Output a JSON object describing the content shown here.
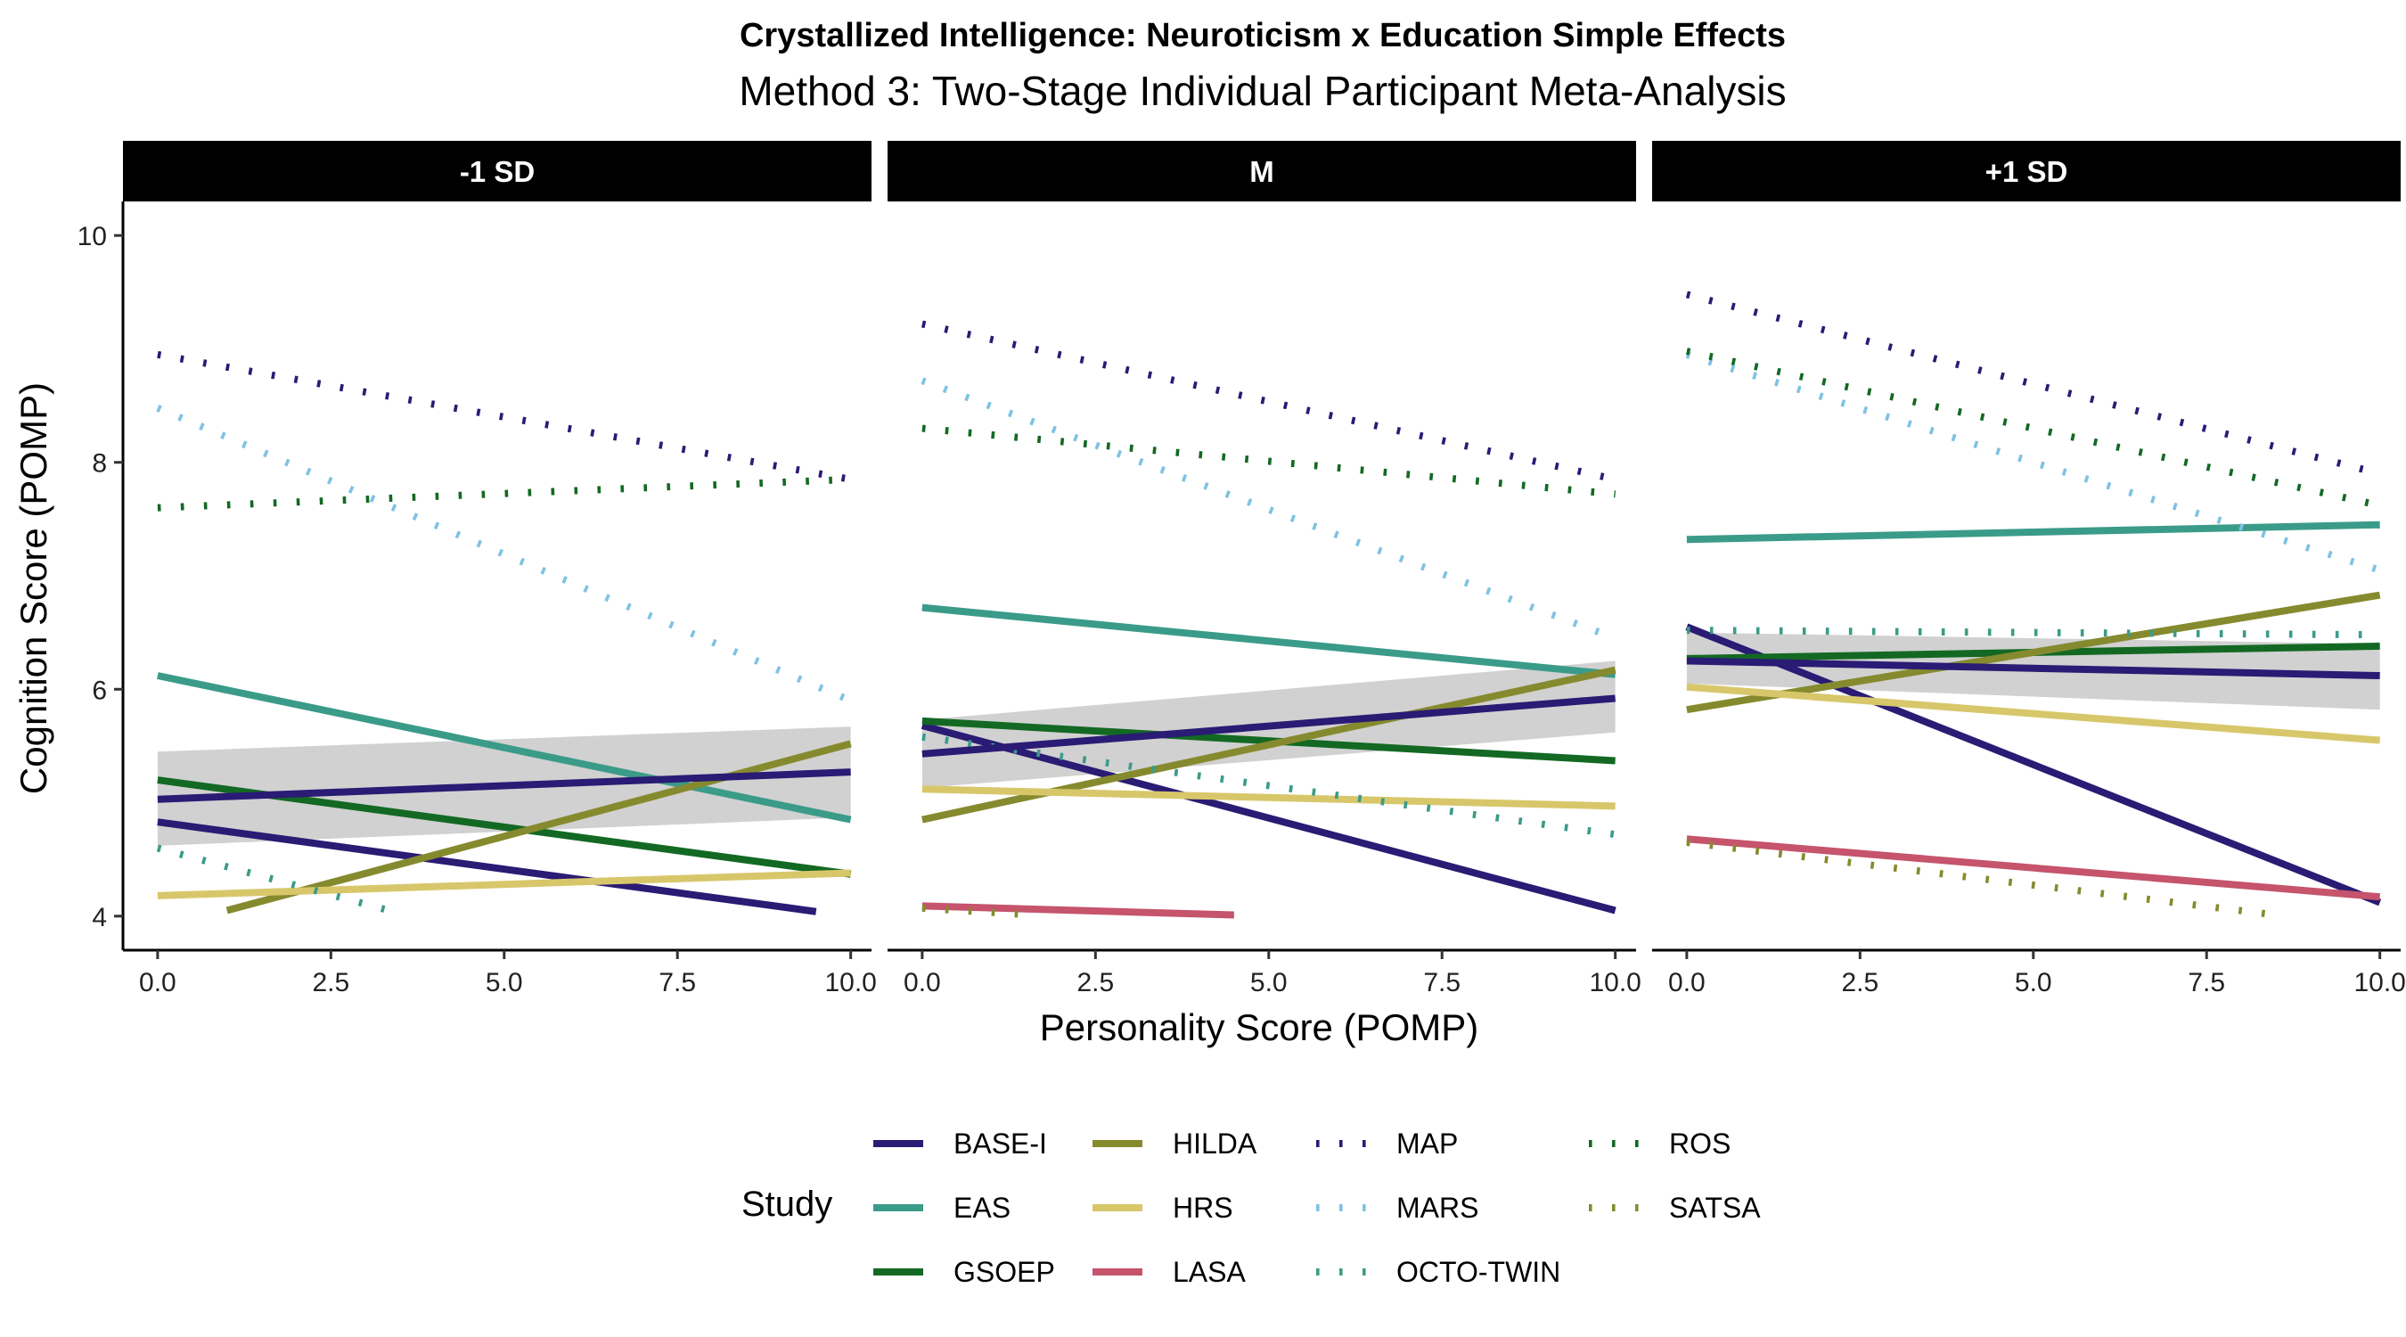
{
  "chart_data": {
    "type": "line",
    "title": "Crystallized Intelligence: Neuroticism x Education Simple Effects",
    "subtitle": "Method 3: Two-Stage Individual Participant Meta-Analysis",
    "xlabel": "Personality Score (POMP)",
    "ylabel": "Cognition Score (POMP)",
    "xlim": [
      -0.5,
      10.3
    ],
    "ylim": [
      3.7,
      10.3
    ],
    "x_ticks": [
      "0.0",
      "2.5",
      "5.0",
      "7.5",
      "10.0"
    ],
    "x_tick_values": [
      0,
      2.5,
      5,
      7.5,
      10
    ],
    "y_ticks": [
      "4",
      "6",
      "8",
      "10"
    ],
    "y_tick_values": [
      4,
      6,
      8,
      10
    ],
    "grid": false,
    "legend": {
      "title": "Study",
      "position": "bottom",
      "items": [
        {
          "name": "BASE-I",
          "color": "#2a1b74",
          "style": "solid"
        },
        {
          "name": "EAS",
          "color": "#3b9b89",
          "style": "solid"
        },
        {
          "name": "GSOEP",
          "color": "#136923",
          "style": "solid"
        },
        {
          "name": "HILDA",
          "color": "#868a2e",
          "style": "solid"
        },
        {
          "name": "HRS",
          "color": "#d8c76a",
          "style": "solid"
        },
        {
          "name": "LASA",
          "color": "#c5546c",
          "style": "solid"
        },
        {
          "name": "MAP",
          "color": "#2a1b74",
          "style": "dotted"
        },
        {
          "name": "MARS",
          "color": "#7fc2e3",
          "style": "dotted"
        },
        {
          "name": "OCTO-TWIN",
          "color": "#3b9b89",
          "style": "dotted"
        },
        {
          "name": "ROS",
          "color": "#136923",
          "style": "dotted"
        },
        {
          "name": "SATSA",
          "color": "#868a2e",
          "style": "dotted"
        }
      ]
    },
    "panels": [
      {
        "label": "-1 SD",
        "overall": {
          "x": [
            0,
            10
          ],
          "y": [
            5.03,
            5.27
          ],
          "ci_low": [
            4.62,
            4.87
          ],
          "ci_high": [
            5.45,
            5.67
          ]
        },
        "series": [
          {
            "name": "BASE-I",
            "x": [
              0,
              9.5
            ],
            "y": [
              4.83,
              4.04
            ]
          },
          {
            "name": "EAS",
            "x": [
              0,
              10
            ],
            "y": [
              6.12,
              4.85
            ]
          },
          {
            "name": "GSOEP",
            "x": [
              0,
              10
            ],
            "y": [
              5.2,
              4.37
            ]
          },
          {
            "name": "HILDA",
            "x": [
              1,
              10
            ],
            "y": [
              4.05,
              5.52
            ]
          },
          {
            "name": "HRS",
            "x": [
              0,
              10
            ],
            "y": [
              4.18,
              4.38
            ]
          },
          {
            "name": "MAP",
            "x": [
              0,
              10
            ],
            "y": [
              8.95,
              7.85
            ]
          },
          {
            "name": "MARS",
            "x": [
              0,
              10
            ],
            "y": [
              8.48,
              5.9
            ]
          },
          {
            "name": "OCTO-TWIN",
            "x": [
              0,
              3.4
            ],
            "y": [
              4.6,
              4.04
            ]
          },
          {
            "name": "ROS",
            "x": [
              0,
              10
            ],
            "y": [
              7.6,
              7.85
            ]
          }
        ]
      },
      {
        "label": "M",
        "overall": {
          "x": [
            0,
            10
          ],
          "y": [
            5.43,
            5.92
          ],
          "ci_low": [
            5.13,
            5.62
          ],
          "ci_high": [
            5.73,
            6.25
          ]
        },
        "series": [
          {
            "name": "BASE-I",
            "x": [
              0,
              10
            ],
            "y": [
              5.68,
              4.05
            ]
          },
          {
            "name": "EAS",
            "x": [
              0,
              10
            ],
            "y": [
              6.72,
              6.13
            ]
          },
          {
            "name": "GSOEP",
            "x": [
              0,
              10
            ],
            "y": [
              5.72,
              5.37
            ]
          },
          {
            "name": "HILDA",
            "x": [
              0,
              10
            ],
            "y": [
              4.85,
              6.17
            ]
          },
          {
            "name": "HRS",
            "x": [
              0,
              10
            ],
            "y": [
              5.12,
              4.97
            ]
          },
          {
            "name": "LASA",
            "x": [
              0,
              4.5
            ],
            "y": [
              4.09,
              4.01
            ]
          },
          {
            "name": "MAP",
            "x": [
              0,
              10
            ],
            "y": [
              9.22,
              7.85
            ]
          },
          {
            "name": "MARS",
            "x": [
              0,
              10
            ],
            "y": [
              8.72,
              6.45
            ]
          },
          {
            "name": "OCTO-TWIN",
            "x": [
              0,
              10
            ],
            "y": [
              5.58,
              4.72
            ]
          },
          {
            "name": "ROS",
            "x": [
              0,
              10
            ],
            "y": [
              8.3,
              7.72
            ]
          },
          {
            "name": "SATSA",
            "x": [
              0,
              1.6
            ],
            "y": [
              4.07,
              4.01
            ]
          }
        ]
      },
      {
        "label": "+1 SD",
        "overall": {
          "x": [
            0,
            10
          ],
          "y": [
            6.25,
            6.12
          ],
          "ci_low": [
            6.05,
            5.82
          ],
          "ci_high": [
            6.5,
            6.4
          ]
        },
        "series": [
          {
            "name": "BASE-I",
            "x": [
              0,
              10
            ],
            "y": [
              6.55,
              4.12
            ]
          },
          {
            "name": "EAS",
            "x": [
              0,
              10
            ],
            "y": [
              7.32,
              7.45
            ]
          },
          {
            "name": "GSOEP",
            "x": [
              0,
              10
            ],
            "y": [
              6.27,
              6.38
            ]
          },
          {
            "name": "HILDA",
            "x": [
              0,
              10
            ],
            "y": [
              5.82,
              6.83
            ]
          },
          {
            "name": "HRS",
            "x": [
              0,
              10
            ],
            "y": [
              6.02,
              5.55
            ]
          },
          {
            "name": "LASA",
            "x": [
              0,
              10
            ],
            "y": [
              4.68,
              4.17
            ]
          },
          {
            "name": "MAP",
            "x": [
              0,
              10
            ],
            "y": [
              9.48,
              7.9
            ]
          },
          {
            "name": "MARS",
            "x": [
              0,
              10
            ],
            "y": [
              8.95,
              7.05
            ]
          },
          {
            "name": "OCTO-TWIN",
            "x": [
              0,
              10
            ],
            "y": [
              6.52,
              6.48
            ]
          },
          {
            "name": "ROS",
            "x": [
              0,
              10
            ],
            "y": [
              8.98,
              7.62
            ]
          },
          {
            "name": "SATSA",
            "x": [
              0,
              8.5
            ],
            "y": [
              4.65,
              4.01
            ]
          }
        ]
      }
    ]
  }
}
